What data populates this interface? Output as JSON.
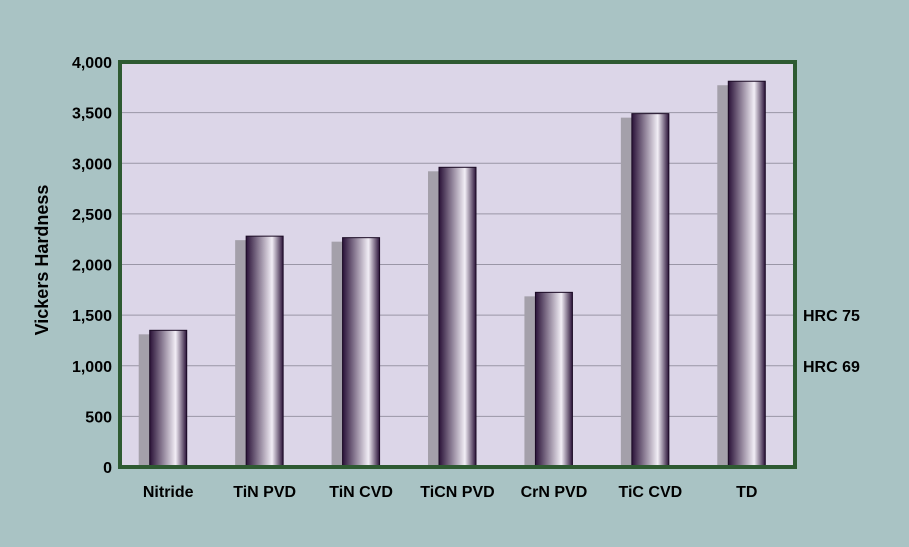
{
  "colors": {
    "background": "#a9c3c4",
    "plot_area": "#dcd6e8",
    "plot_border": "#2e5a32",
    "gridline": "#9a96a6",
    "bar_dark": "#2a1238",
    "bar_light": "#f2eef6",
    "bar_shadow": "#a4a0aa"
  },
  "chart_data": {
    "type": "bar",
    "categories": [
      "Nitride",
      "TiN PVD",
      "TiN CVD",
      "TiCN PVD",
      "CrN PVD",
      "TiC CVD",
      "TD"
    ],
    "values": [
      1350,
      2280,
      2265,
      2960,
      1725,
      3490,
      3810
    ],
    "ylabel": "Vickers Hardness",
    "xlabel": "",
    "ylim": [
      0,
      4000
    ],
    "yticks": [
      0,
      500,
      1000,
      1500,
      2000,
      2500,
      3000,
      3500,
      4000
    ],
    "ytick_labels": [
      "0",
      "500",
      "1,000",
      "1,500",
      "2,000",
      "2,500",
      "3,000",
      "3,500",
      "4,000"
    ],
    "grid": true,
    "annotations": [
      {
        "text": "HRC 75",
        "y": 1500
      },
      {
        "text": "HRC 69",
        "y": 1000
      }
    ]
  }
}
